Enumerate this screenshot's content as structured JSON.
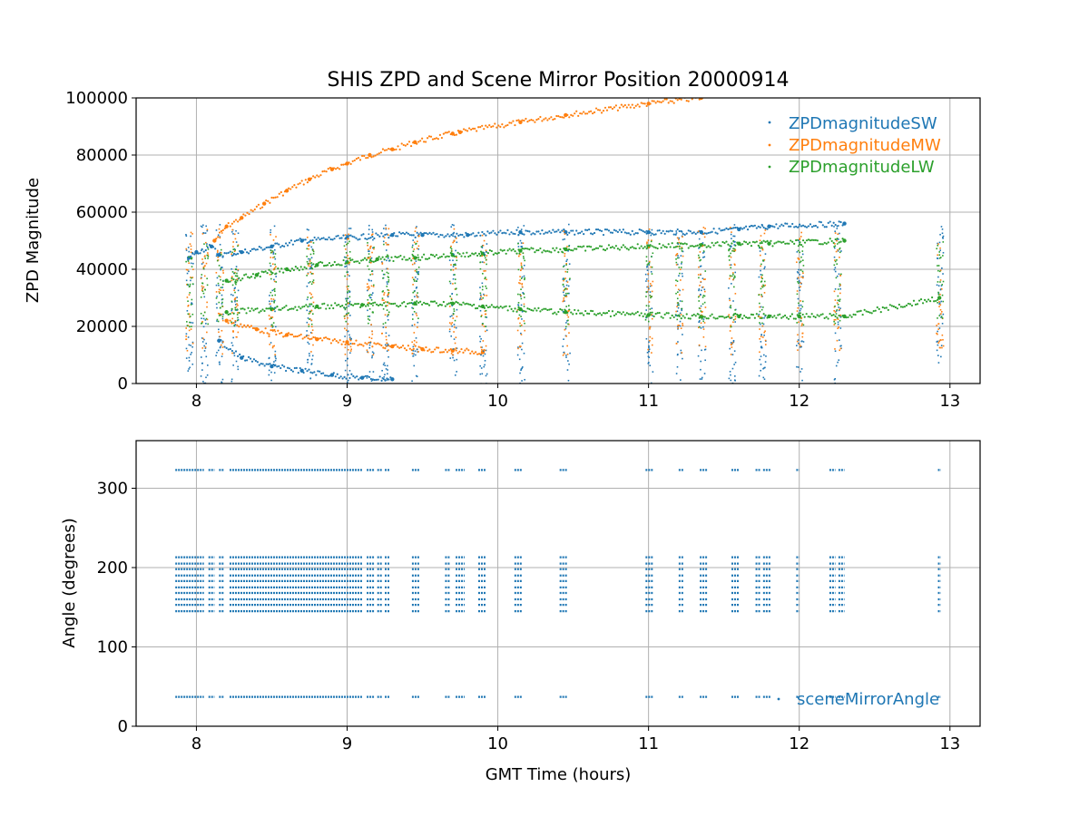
{
  "chart_data": [
    {
      "type": "scatter",
      "title": "SHIS ZPD and Scene Mirror Position 20000914",
      "xlabel": "",
      "ylabel": "ZPD Magnitude",
      "xlim": [
        7.6,
        13.2
      ],
      "ylim": [
        0,
        100000
      ],
      "xticks": [
        8,
        9,
        10,
        11,
        12,
        13
      ],
      "xtick_labels": [
        "8",
        "9",
        "10",
        "11",
        "12",
        "13"
      ],
      "yticks": [
        0,
        20000,
        40000,
        60000,
        80000,
        100000
      ],
      "ytick_labels": [
        "0",
        "20000",
        "40000",
        "60000",
        "80000",
        "100000"
      ],
      "grid": true,
      "legend_position": "top-right",
      "series": [
        {
          "name": "ZPDmagnitudeSW",
          "color": "#1f77b4"
        },
        {
          "name": "ZPDmagnitudeMW",
          "color": "#ff7f0e"
        },
        {
          "name": "ZPDmagnitudeLW",
          "color": "#2ca02c"
        }
      ],
      "sampled_points": {
        "MW_calibration_curve": {
          "x": [
            8.12,
            8.2,
            8.3,
            8.45,
            8.6,
            8.75,
            8.9,
            9.0,
            9.15,
            9.3,
            9.45,
            9.7,
            9.75,
            10.15,
            10.45,
            11.0,
            11.35
          ],
          "y": [
            50000,
            55000,
            58000,
            63000,
            67500,
            71500,
            75000,
            77000,
            80000,
            82000,
            84500,
            87500,
            88000,
            91500,
            94000,
            98000,
            100000
          ]
        },
        "SW_upper_band": {
          "x": [
            7.95,
            8.0,
            8.1,
            8.15,
            8.3,
            8.5,
            8.7,
            9.0,
            9.3,
            9.5,
            9.8,
            10.15,
            10.45,
            11.0,
            11.35,
            11.6,
            11.8,
            12.3
          ],
          "y": [
            44000,
            46000,
            48000,
            45000,
            46000,
            48000,
            50000,
            51000,
            52000,
            52000,
            52000,
            53000,
            53000,
            53000,
            53000,
            54000,
            55000,
            56000
          ]
        },
        "SW_decay_band": {
          "x": [
            8.15,
            8.3,
            8.5,
            8.7,
            8.9,
            9.1,
            9.3
          ],
          "y": [
            15000,
            9000,
            6000,
            4500,
            3000,
            2000,
            1500
          ]
        },
        "MW_lower_band": {
          "x": [
            8.2,
            8.4,
            8.6,
            8.8,
            9.0,
            9.3,
            9.5,
            9.7,
            9.9
          ],
          "y": [
            22000,
            19000,
            17000,
            15500,
            14500,
            13000,
            12000,
            11500,
            11000
          ]
        },
        "LW_upper_band": {
          "x": [
            8.2,
            8.4,
            8.6,
            8.8,
            9.0,
            9.2,
            9.45,
            9.7,
            9.9,
            10.15,
            10.45,
            11.0,
            11.35,
            11.6,
            11.8,
            12.3
          ],
          "y": [
            36000,
            38000,
            40000,
            41500,
            42500,
            43500,
            44000,
            45000,
            45500,
            46500,
            47000,
            48000,
            48500,
            49000,
            49000,
            50000
          ]
        },
        "LW_mid_band": {
          "x": [
            8.2,
            8.5,
            8.8,
            9.1,
            9.45,
            9.7,
            9.9,
            10.15,
            10.45,
            11.0,
            11.35,
            11.6,
            11.8,
            12.0,
            12.3,
            12.93
          ],
          "y": [
            25000,
            26000,
            27000,
            27500,
            28000,
            28000,
            27000,
            26000,
            25000,
            24000,
            23500,
            23500,
            23500,
            23500,
            23500,
            30000
          ]
        }
      },
      "data_clusters_x": [
        7.95,
        8.05,
        8.15,
        8.25,
        8.5,
        8.75,
        9.0,
        9.15,
        9.25,
        9.45,
        9.7,
        9.9,
        10.15,
        10.45,
        11.0,
        11.2,
        11.35,
        11.55,
        11.75,
        12.0,
        12.25,
        12.93
      ]
    },
    {
      "type": "scatter",
      "title": "",
      "xlabel": "GMT Time (hours)",
      "ylabel": "Angle (degrees)",
      "xlim": [
        7.6,
        13.2
      ],
      "ylim": [
        0,
        360
      ],
      "xticks": [
        8,
        9,
        10,
        11,
        12,
        13
      ],
      "xtick_labels": [
        "8",
        "9",
        "10",
        "11",
        "12",
        "13"
      ],
      "yticks": [
        0,
        100,
        200,
        300
      ],
      "ytick_labels": [
        "0",
        "100",
        "200",
        "300"
      ],
      "grid": true,
      "legend_position": "bottom-right",
      "series": [
        {
          "name": "sceneMirrorAngle",
          "color": "#1f77b4",
          "angle_levels": [
            37,
            145,
            153,
            160,
            168,
            175,
            183,
            190,
            198,
            205,
            213,
            323
          ]
        }
      ],
      "observation_intervals": [
        [
          7.86,
          8.05
        ],
        [
          8.08,
          8.12
        ],
        [
          8.15,
          8.18
        ],
        [
          8.22,
          9.1
        ],
        [
          9.13,
          9.18
        ],
        [
          9.2,
          9.23
        ],
        [
          9.25,
          9.28
        ],
        [
          9.43,
          9.48
        ],
        [
          9.65,
          9.68
        ],
        [
          9.72,
          9.78
        ],
        [
          9.87,
          9.92
        ],
        [
          10.11,
          10.16
        ],
        [
          10.41,
          10.46
        ],
        [
          10.98,
          11.03
        ],
        [
          11.2,
          11.23
        ],
        [
          11.34,
          11.39
        ],
        [
          11.55,
          11.6
        ],
        [
          11.71,
          11.74
        ],
        [
          11.76,
          11.81
        ],
        [
          11.98,
          12.0
        ],
        [
          12.2,
          12.24
        ],
        [
          12.26,
          12.3
        ],
        [
          12.92,
          12.94
        ]
      ]
    }
  ]
}
